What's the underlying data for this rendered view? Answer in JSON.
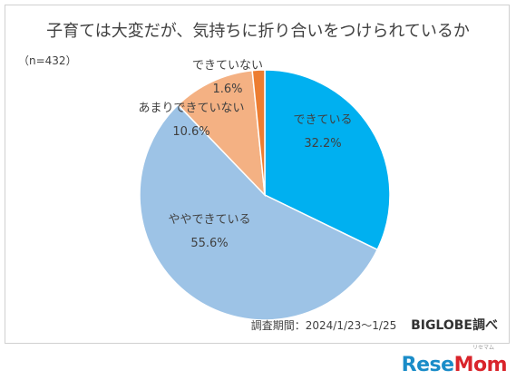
{
  "chart_data": {
    "type": "pie",
    "title": "子育ては大変だが、気持ちに折り合いをつけられているか",
    "note": "（n=432）",
    "start_angle_deg": 0,
    "direction": "clockwise",
    "slices": [
      {
        "label": "できている",
        "value": 32.2,
        "value_label": "32.2%",
        "color": "#00b0f0"
      },
      {
        "label": "ややできている",
        "value": 55.6,
        "value_label": "55.6%",
        "color": "#9dc3e6"
      },
      {
        "label": "あまりできていない",
        "value": 10.6,
        "value_label": "10.6%",
        "color": "#f4b183"
      },
      {
        "label": "できていない",
        "value": 1.6,
        "value_label": "1.6%",
        "color": "#ed7d31"
      }
    ]
  },
  "footer": {
    "period": "調査期間：2024/1/23～1/25",
    "source": "BIGLOBE調べ"
  },
  "logo": {
    "part1": "Rese",
    "part2": "Mom",
    "sub": "リセマム"
  }
}
